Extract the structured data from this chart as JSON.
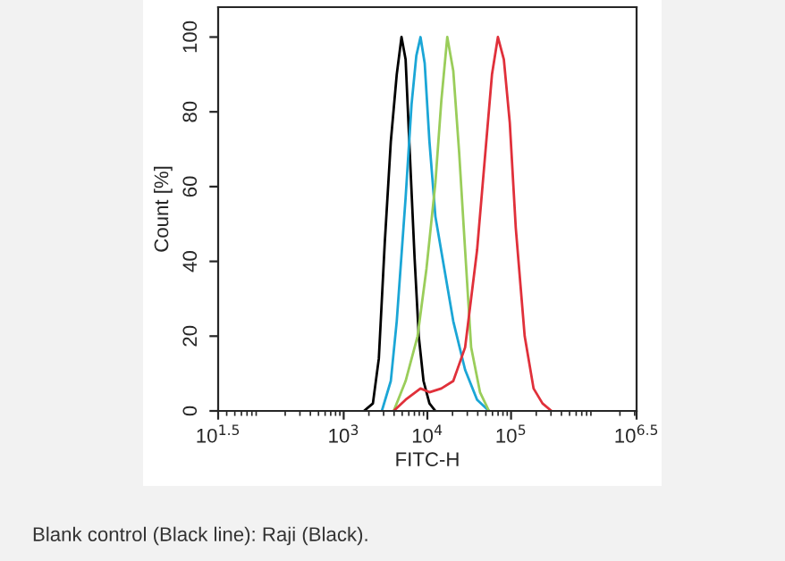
{
  "chart_data": {
    "type": "line",
    "xlabel": "FITC-H",
    "ylabel": "Count [%]",
    "log": "x",
    "xlim": [
      31.62,
      3162000
    ],
    "ylim": [
      0,
      108
    ],
    "xticks": [
      {
        "value": 31.62,
        "label": "10$^{1.5}$"
      },
      {
        "value": 1000,
        "label": "10$^{3}$"
      },
      {
        "value": 10000,
        "label": "10$^{4}$"
      },
      {
        "value": 100000,
        "label": "10$^{5}$"
      },
      {
        "value": 3162000,
        "label": "10$^{6.5}$"
      }
    ],
    "yticks": [
      0,
      20,
      40,
      60,
      80,
      100
    ],
    "grid": false,
    "legend": false,
    "marker": "none",
    "line_style": "solid",
    "series": [
      {
        "color": "#000000",
        "x": [
          1750,
          2234,
          2630,
          3097,
          3656,
          4305,
          4909,
          5495,
          6166,
          7031,
          7889,
          8995,
          10590,
          12470
        ],
        "values": [
          0,
          2,
          14,
          45,
          72,
          90,
          100,
          94,
          69,
          41,
          20,
          8,
          2,
          0
        ]
      },
      {
        "color": "#1ba6d6",
        "x": [
          2858,
          3656,
          4305,
          5495,
          6471,
          7379,
          8277,
          9290,
          10590,
          12470,
          15950,
          20390,
          28250,
          39260,
          54450
        ],
        "values": [
          0,
          8,
          24,
          57,
          82,
          95,
          100,
          93,
          72,
          52,
          38,
          24,
          11,
          3,
          0
        ]
      },
      {
        "color": "#9acd5a",
        "x": [
          3963,
          5495,
          7638,
          9750,
          12470,
          14690,
          17300,
          20390,
          23990,
          28250,
          33340,
          42560,
          54450
        ],
        "values": [
          0,
          8,
          20,
          38,
          61,
          83,
          100,
          91,
          69,
          43,
          17,
          5,
          0
        ]
      },
      {
        "color": "#e0303a",
        "x": [
          3963,
          5495,
          8277,
          10590,
          14690,
          20390,
          28250,
          39260,
          50120,
          59160,
          69660,
          82040,
          96610,
          113800,
          145500,
          185800,
          237700,
          304100
        ],
        "values": [
          0,
          3,
          6,
          5,
          6,
          8,
          17,
          43,
          71,
          90,
          100,
          94,
          77,
          49,
          20,
          6,
          2,
          0
        ]
      }
    ],
    "annotations": [
      "Blank control (Black line): Raji (Black)."
    ]
  }
}
